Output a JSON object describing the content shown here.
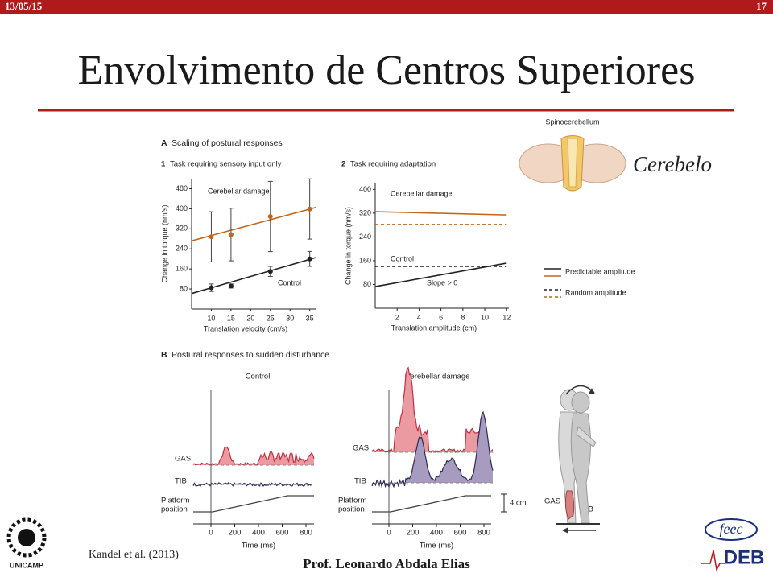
{
  "header": {
    "date": "13/05/15",
    "page": "17"
  },
  "title": "Envolvimento de Centros Superiores",
  "figure": {
    "panel_a": {
      "label": "A",
      "title": "Scaling of postural responses"
    },
    "charts": [
      {
        "type": "scatter",
        "label": "1",
        "title": "Task requiring sensory input only",
        "x_label": "Translation velocity (cm/s)",
        "y_label": "Change in torque (nm/s)",
        "xlim": [
          5,
          36.5
        ],
        "ylim": [
          0,
          520
        ],
        "xticks": [
          10,
          15,
          20,
          25,
          30,
          35
        ],
        "yticks": [
          80,
          160,
          240,
          320,
          400,
          480
        ],
        "series": [
          {
            "name": "Cerebellar damage",
            "color": "#c0661a",
            "x": [
              10,
              15,
              25,
              35
            ],
            "values": [
              288,
              297,
              369,
              399
            ],
            "errors": [
              100,
              105,
              140,
              120
            ],
            "fit_x": [
              5,
              36.5
            ],
            "fit": [
              272,
              405
            ]
          },
          {
            "name": "Control",
            "color": "#222222",
            "x": [
              10,
              15,
              25,
              35
            ],
            "values": [
              85,
              92,
              150,
              200
            ],
            "errors": [
              15,
              8,
              20,
              30
            ],
            "fit_x": [
              5,
              36.5
            ],
            "fit": [
              62,
              205
            ]
          }
        ]
      },
      {
        "type": "line",
        "label": "2",
        "title": "Task requiring adaptation",
        "x_label": "Translation amplitude (cm)",
        "y_label": "Change in torque (nm/s)",
        "xlim": [
          0,
          12.2
        ],
        "ylim": [
          0,
          420
        ],
        "xticks": [
          2,
          4,
          6,
          8,
          10,
          12
        ],
        "yticks": [
          80,
          160,
          240,
          320,
          400
        ],
        "annotation": "Slope > 0",
        "series": [
          {
            "name": "Cerebellar damage",
            "color": "#c0661a",
            "dash": false,
            "x": [
              0,
              12
            ],
            "values": [
              325,
              314
            ]
          },
          {
            "color": "#c0661a",
            "dash": true,
            "x": [
              0,
              12
            ],
            "values": [
              282,
              282
            ]
          },
          {
            "name": "Control",
            "color": "#222222",
            "dash": false,
            "x": [
              0,
              12
            ],
            "values": [
              73,
              152
            ]
          },
          {
            "color": "#222222",
            "dash": true,
            "x": [
              0,
              12
            ],
            "values": [
              141,
              141
            ]
          }
        ]
      }
    ],
    "legend": [
      {
        "label": "Predictable amplitude",
        "dash": false
      },
      {
        "label": "Random amplitude",
        "dash": true
      }
    ],
    "legend_colors": [
      "#222222",
      "#c0661a"
    ],
    "spinocerebellum": "Spinocerebellum",
    "panel_b": {
      "label": "B",
      "title": "Postural responses to sudden disturbance",
      "columns": [
        "Control",
        "Cerebellar damage"
      ],
      "rows": [
        "GAS",
        "TIB"
      ],
      "platform_label": [
        "Platform",
        "position"
      ],
      "time_ticks": [
        0,
        200,
        400,
        600,
        800
      ],
      "time_label": "Time (ms)",
      "scale_bar": "4 cm",
      "body_labels": [
        "GAS",
        "TIB"
      ]
    }
  },
  "side_label": "Cerebelo",
  "caption": "Kandel et al. (2013)",
  "footer": "Prof. Leonardo Abdala Elias",
  "logos": {
    "left": "UNICAMP",
    "right_top": "feec",
    "right_bottom": "DEB"
  }
}
